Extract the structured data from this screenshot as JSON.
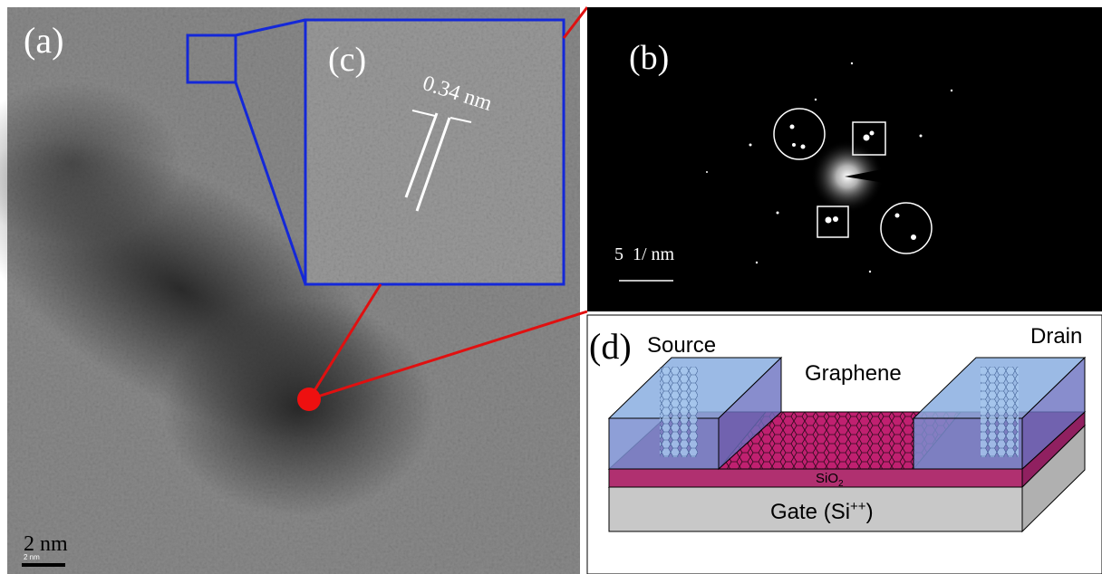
{
  "panel_a": {
    "label": "(a)",
    "scale_bar": "2 nm",
    "scale_bar_small": "2 nm"
  },
  "panel_b": {
    "label": "(b)",
    "scale_bar": "5  1/ nm"
  },
  "panel_c": {
    "label": "(c)",
    "spacing": "0.34 nm"
  },
  "panel_d": {
    "label": "(d)",
    "source": "Source",
    "drain": "Drain",
    "graphene": "Graphene",
    "oxide": {
      "base": "SiO",
      "sub": "2"
    },
    "gate": {
      "base": "Gate (Si",
      "sup": "++",
      "end": ")"
    }
  }
}
